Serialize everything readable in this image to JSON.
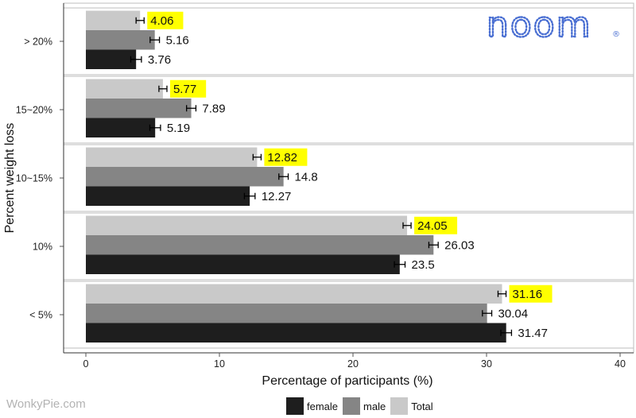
{
  "brand": {
    "logo_text": "noom",
    "registered_mark": "®"
  },
  "watermark": "WonkyPie.com",
  "chart_data": {
    "type": "bar",
    "orientation": "horizontal",
    "xlabel": "Percentage of participants (%)",
    "ylabel": "Percent weight loss",
    "xlim": [
      0,
      40
    ],
    "xticks": [
      0,
      10,
      20,
      30,
      40
    ],
    "categories": [
      "> 20%",
      "15~20%",
      "10~15%",
      "10%",
      "< 5%"
    ],
    "series": [
      {
        "name": "Total",
        "color": "#c9c9c9",
        "values": [
          4.06,
          5.77,
          12.82,
          24.05,
          31.16
        ],
        "highlight": true
      },
      {
        "name": "male",
        "color": "#858585",
        "values": [
          5.16,
          7.89,
          14.8,
          26.03,
          30.04
        ]
      },
      {
        "name": "female",
        "color": "#1e1e1e",
        "values": [
          3.76,
          5.19,
          12.27,
          23.5,
          31.47
        ]
      }
    ],
    "highlight_color": "#ffff00",
    "error_bars": true,
    "grid": false,
    "legend": {
      "placement": "bottom",
      "order": [
        "female",
        "male",
        "Total"
      ]
    }
  }
}
